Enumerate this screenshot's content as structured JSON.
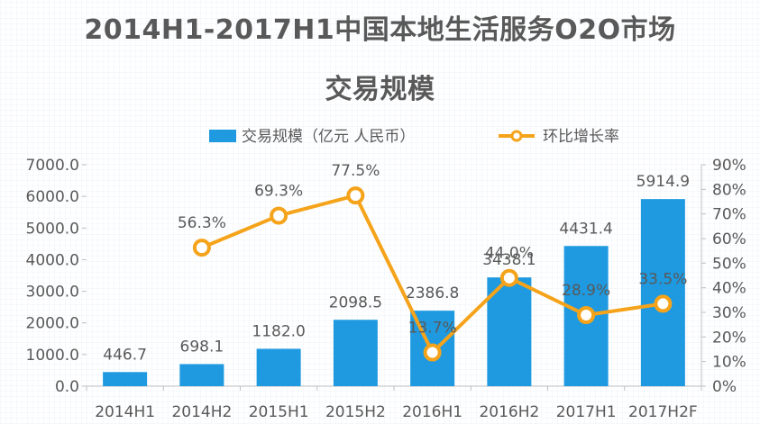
{
  "title_line1": "2014H1-2017H1中国本地生活服务O2O市场",
  "title_line2": "交易规模",
  "colors": {
    "bar": "#1f9ae0",
    "line": "#f5a31a",
    "text": "#595959",
    "axis": "#bfbfbf",
    "marker_fill": "#ffffff"
  },
  "chart_data": {
    "type": "bar",
    "title": "2014H1-2017H1中国本地生活服务O2O市场交易规模",
    "categories": [
      "2014H1",
      "2014H2",
      "2015H1",
      "2015H2",
      "2016H1",
      "2016H2",
      "2017H1",
      "2017H2F"
    ],
    "series": [
      {
        "name": "交易规模（亿元 人民币）",
        "type": "bar",
        "axis": "left",
        "values": [
          446.7,
          698.1,
          1182.0,
          2098.5,
          2386.8,
          3438.1,
          4431.4,
          5914.9
        ],
        "labels": [
          "446.7",
          "698.1",
          "1182.0",
          "2098.5",
          "2386.8",
          "3438.1",
          "4431.4",
          "5914.9"
        ]
      },
      {
        "name": "环比增长率",
        "type": "line",
        "axis": "right",
        "values": [
          null,
          56.3,
          69.3,
          77.5,
          13.7,
          44.0,
          28.9,
          33.5
        ],
        "labels": [
          "",
          "56.3%",
          "69.3%",
          "77.5%",
          "13.7%",
          "44.0%",
          "28.9%",
          "33.5%"
        ]
      }
    ],
    "y_left": {
      "range": [
        0,
        7000
      ],
      "ticks": [
        "0.0",
        "1000.0",
        "2000.0",
        "3000.0",
        "4000.0",
        "5000.0",
        "6000.0",
        "7000.0"
      ]
    },
    "y_right": {
      "range": [
        0,
        90
      ],
      "ticks": [
        "0%",
        "10%",
        "20%",
        "30%",
        "40%",
        "50%",
        "60%",
        "70%",
        "80%",
        "90%"
      ]
    },
    "legend_position": "top",
    "grid": false
  }
}
